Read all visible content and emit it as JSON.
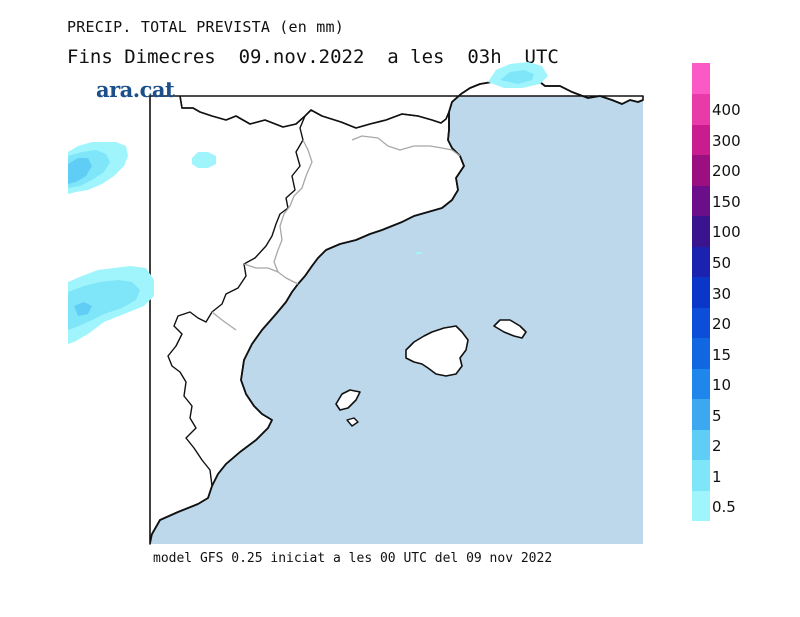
{
  "title": {
    "line1": "PRECIP. TOTAL PREVISTA (en mm)",
    "line2": "Fins Dimecres  09.nov.2022  a les  03h  UTC"
  },
  "logo": "ara.cat",
  "footer": "model GFS 0.25 iniciat a les 00 UTC del 09 nov 2022",
  "colors": {
    "sea": "#bcd8ea",
    "land": "#ffffff",
    "coast": "#111111",
    "border": "#a8a8a8"
  },
  "legend": {
    "labels": [
      "0.5",
      "1",
      "2",
      "5",
      "10",
      "15",
      "20",
      "30",
      "50",
      "100",
      "150",
      "200",
      "300",
      "400"
    ],
    "colors": [
      "#9ff5fb",
      "#7fe6fa",
      "#5fcdf5",
      "#3ba8f0",
      "#1f86ec",
      "#1166e2",
      "#0c4ed7",
      "#0b37c8",
      "#1b22b0",
      "#3a148f",
      "#6b0e8a",
      "#9b0f80",
      "#c91c8f",
      "#e83aa9",
      "#fb59c6"
    ]
  },
  "precip_areas": [
    {
      "level": "1"
    },
    {
      "level": "2"
    },
    {
      "level": "5"
    }
  ]
}
